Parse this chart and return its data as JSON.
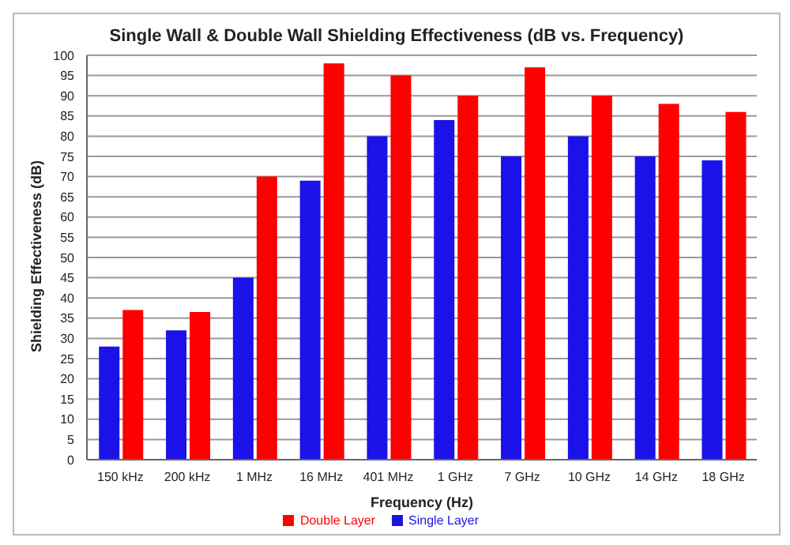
{
  "chart_data": {
    "type": "bar",
    "title": "Single Wall & Double Wall Shielding Effectiveness (dB vs. Frequency)",
    "xlabel": "Frequency (Hz)",
    "ylabel": "Shielding Effectiveness (dB)",
    "categories": [
      "150 kHz",
      "200 kHz",
      "1 MHz",
      "16 MHz",
      "401 MHz",
      "1 GHz",
      "7 GHz",
      "10 GHz",
      "14 GHz",
      "18 GHz"
    ],
    "series": [
      {
        "name": "Single Layer",
        "color": "#1a12e8",
        "values": [
          28,
          32,
          45,
          69,
          80,
          84,
          75,
          80,
          75,
          74
        ]
      },
      {
        "name": "Double Layer",
        "color": "#ff0000",
        "values": [
          37,
          36.5,
          70,
          98,
          95,
          90,
          97,
          90,
          88,
          86
        ]
      }
    ],
    "ylim": [
      0,
      100
    ],
    "yticks": [
      0,
      5,
      10,
      15,
      20,
      25,
      30,
      35,
      40,
      45,
      50,
      55,
      60,
      65,
      70,
      75,
      80,
      85,
      90,
      95,
      100
    ],
    "grid": "y",
    "legend": "bottom"
  }
}
